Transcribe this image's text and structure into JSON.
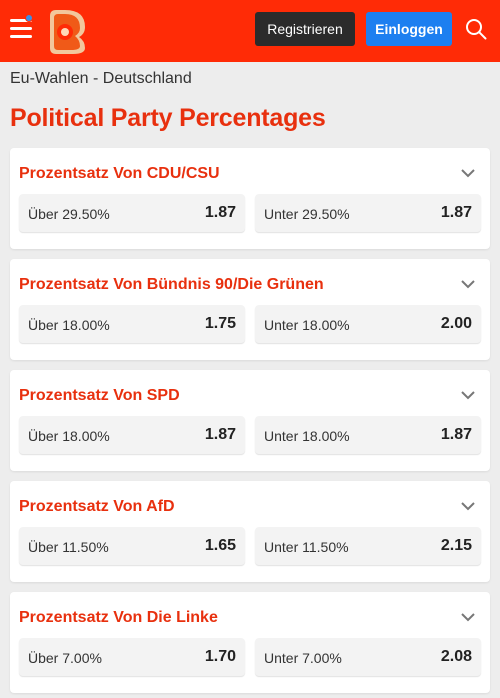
{
  "header": {
    "register_label": "Registrieren",
    "login_label": "Einloggen",
    "colors": {
      "bar": "#ff2b06",
      "register_bg": "#2b2b2b",
      "login_bg": "#1d7ff0"
    }
  },
  "breadcrumb": "Eu-Wahlen - Deutschland",
  "page_title": "Political Party Percentages",
  "markets": [
    {
      "title": "Prozentsatz Von CDU/CSU",
      "over": {
        "label": "Über 29.50%",
        "odds": "1.87"
      },
      "under": {
        "label": "Unter 29.50%",
        "odds": "1.87"
      }
    },
    {
      "title": "Prozentsatz Von Bündnis 90/Die Grünen",
      "over": {
        "label": "Über 18.00%",
        "odds": "1.75"
      },
      "under": {
        "label": "Unter 18.00%",
        "odds": "2.00"
      }
    },
    {
      "title": "Prozentsatz Von SPD",
      "over": {
        "label": "Über 18.00%",
        "odds": "1.87"
      },
      "under": {
        "label": "Unter 18.00%",
        "odds": "1.87"
      }
    },
    {
      "title": "Prozentsatz Von AfD",
      "over": {
        "label": "Über 11.50%",
        "odds": "1.65"
      },
      "under": {
        "label": "Unter 11.50%",
        "odds": "2.15"
      }
    },
    {
      "title": "Prozentsatz Von Die Linke",
      "over": {
        "label": "Über 7.00%",
        "odds": "1.70"
      },
      "under": {
        "label": "Unter 7.00%",
        "odds": "2.08"
      }
    }
  ],
  "icons": {
    "menu": "hamburger-menu-icon",
    "notification": "notification-dot-icon",
    "logo": "brand-logo",
    "search": "search-icon",
    "expand": "chevron-down-icon"
  }
}
